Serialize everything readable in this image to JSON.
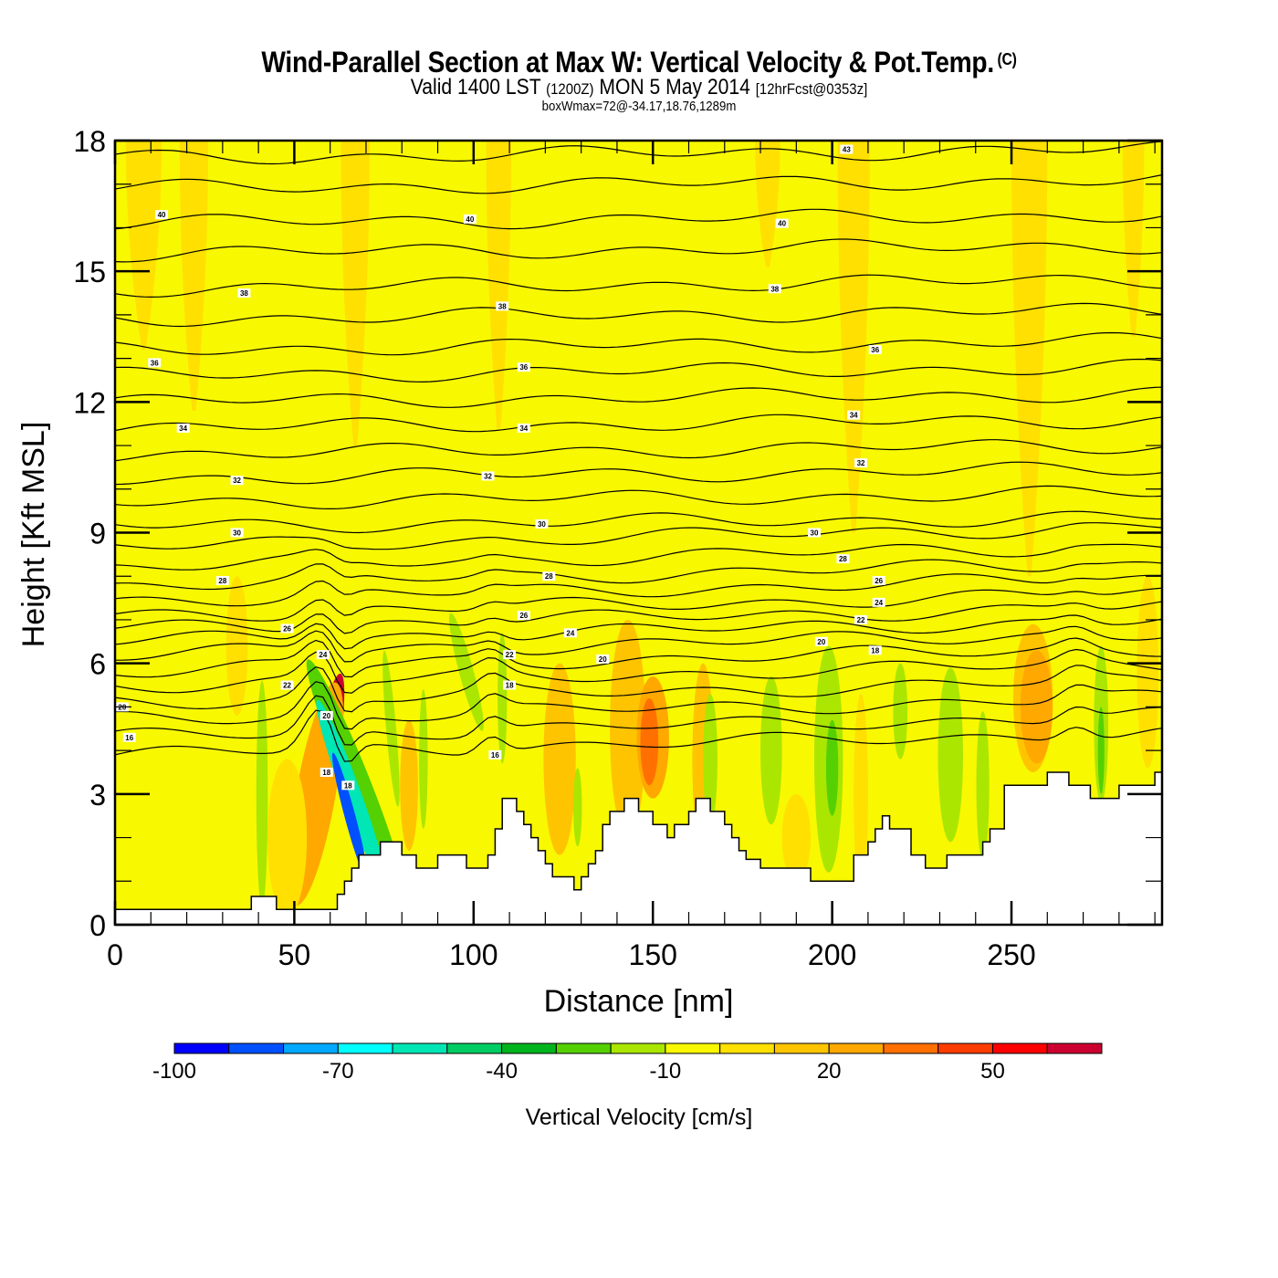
{
  "header": {
    "title": "Wind-Parallel Section at Max W: Vertical Velocity & Pot.Temp.",
    "copyright_mark": "(C)",
    "valid_prefix": "Valid 1400 LST",
    "valid_utc": "(1200Z)",
    "valid_date": "MON 5 May 2014",
    "forecast_info": "[12hrFcst@0353z]",
    "box_info": "boxWmax=72@-34.17,18.76,1289m"
  },
  "chart_data": {
    "type": "heatmap",
    "title": "Wind-Parallel Section at Max W: Vertical Velocity & Pot.Temp.",
    "xlabel": "Distance [nm]",
    "ylabel": "Height [Kft MSL]",
    "xlim": [
      0,
      292
    ],
    "ylim": [
      0,
      18
    ],
    "x_ticks": [
      0,
      50,
      100,
      150,
      200,
      250
    ],
    "x_tick_labels": [
      "0",
      "50",
      "100",
      "150",
      "200",
      "250"
    ],
    "x_minor_step": 10,
    "y_ticks": [
      0,
      3,
      6,
      9,
      12,
      15,
      18
    ],
    "y_tick_labels": [
      "0",
      "3",
      "6",
      "9",
      "12",
      "15",
      "18"
    ],
    "y_minor_step": 1,
    "colorbar": {
      "title": "Vertical Velocity [cm/s]",
      "placement": "bottom",
      "bounds": [
        -100,
        -90,
        -80,
        -70,
        -60,
        -50,
        -40,
        -30,
        -20,
        -10,
        0,
        10,
        20,
        30,
        40,
        50,
        60,
        70
      ],
      "colors": [
        "#0000ff",
        "#0050ff",
        "#00a8ff",
        "#00ffff",
        "#00e6b4",
        "#00cc64",
        "#00b41e",
        "#55d000",
        "#aae600",
        "#f8f800",
        "#ffe000",
        "#ffc400",
        "#ffa800",
        "#ff7000",
        "#ff3c00",
        "#ff0000",
        "#cc0030"
      ],
      "tick_values": [
        -100,
        -70,
        -40,
        -10,
        20,
        50
      ],
      "tick_labels": [
        "-100",
        "-70",
        "-40",
        "-10",
        "20",
        "50"
      ]
    },
    "background_value_cms": -5,
    "terrain_kft": {
      "x_nm": [
        0,
        38,
        38,
        45,
        45,
        60,
        60,
        62,
        62,
        64,
        64,
        66,
        66,
        68,
        68,
        74,
        74,
        80,
        80,
        84,
        84,
        90,
        90,
        98,
        98,
        104,
        104,
        106,
        106,
        108,
        108,
        112,
        112,
        114,
        114,
        116,
        116,
        118,
        118,
        120,
        120,
        122,
        122,
        124,
        124,
        128,
        128,
        130,
        130,
        132,
        132,
        134,
        134,
        136,
        136,
        138,
        138,
        142,
        142,
        146,
        146,
        150,
        150,
        154,
        154,
        156,
        156,
        160,
        160,
        162,
        162,
        166,
        166,
        170,
        170,
        172,
        172,
        174,
        174,
        176,
        176,
        180,
        180,
        186,
        186,
        194,
        194,
        200,
        200,
        206,
        206,
        210,
        210,
        212,
        212,
        214,
        214,
        216,
        216,
        222,
        222,
        224,
        224,
        226,
        226,
        232,
        232,
        238,
        238,
        242,
        242,
        244,
        244,
        248,
        248,
        252,
        252,
        254,
        254,
        256,
        256,
        260,
        260,
        266,
        266,
        272,
        272,
        274,
        274,
        280,
        280,
        290,
        290,
        292
      ],
      "y_kft": [
        0.35,
        0.35,
        0.65,
        0.65,
        0.35,
        0.35,
        0.35,
        0.35,
        0.7,
        0.7,
        1.0,
        1.0,
        1.3,
        1.3,
        1.6,
        1.6,
        1.9,
        1.9,
        1.6,
        1.6,
        1.3,
        1.3,
        1.6,
        1.6,
        1.3,
        1.3,
        1.6,
        1.6,
        2.2,
        2.2,
        2.9,
        2.9,
        2.6,
        2.6,
        2.3,
        2.3,
        2.0,
        2.0,
        1.7,
        1.7,
        1.4,
        1.4,
        1.1,
        1.1,
        1.1,
        1.1,
        0.8,
        0.8,
        1.1,
        1.1,
        1.4,
        1.4,
        1.7,
        1.7,
        2.3,
        2.3,
        2.6,
        2.6,
        2.9,
        2.9,
        2.6,
        2.6,
        2.3,
        2.3,
        2.0,
        2.0,
        2.3,
        2.3,
        2.6,
        2.6,
        2.9,
        2.9,
        2.6,
        2.6,
        2.3,
        2.3,
        2.0,
        2.0,
        1.7,
        1.7,
        1.5,
        1.5,
        1.3,
        1.3,
        1.3,
        1.3,
        1.0,
        1.0,
        1.0,
        1.0,
        1.6,
        1.6,
        1.9,
        1.9,
        2.2,
        2.2,
        2.5,
        2.5,
        2.2,
        2.2,
        1.6,
        1.6,
        1.6,
        1.6,
        1.3,
        1.3,
        1.6,
        1.6,
        1.6,
        1.6,
        1.9,
        1.9,
        2.2,
        2.2,
        3.2,
        3.2,
        3.2,
        3.2,
        3.2,
        3.2,
        3.2,
        3.2,
        3.5,
        3.5,
        3.2,
        3.2,
        2.9,
        2.9,
        2.9,
        2.9,
        3.2,
        3.2,
        3.5,
        3.5
      ]
    },
    "w_features": [
      {
        "value": 60,
        "x_nm": 58,
        "y_kft": 3.5,
        "half_width_nm": 3.5,
        "half_height_kft": 2.3,
        "tilt_deg": 10
      },
      {
        "value": 45,
        "x_nm": 58.5,
        "y_kft": 3.6,
        "half_width_nm": 2.5,
        "half_height_kft": 1.8,
        "tilt_deg": 10
      },
      {
        "value": 70,
        "x_nm": 58,
        "y_kft": 3.7,
        "half_width_nm": 1.5,
        "half_height_kft": 1.2,
        "tilt_deg": 10
      },
      {
        "value": 25,
        "x_nm": 56,
        "y_kft": 3.0,
        "half_width_nm": 5.5,
        "half_height_kft": 2.6,
        "tilt_deg": 10
      },
      {
        "value": -30,
        "x_nm": 67,
        "y_kft": 3.4,
        "half_width_nm": 3.5,
        "half_height_kft": 2.9,
        "tilt_deg": -22
      },
      {
        "value": -60,
        "x_nm": 66,
        "y_kft": 3.0,
        "half_width_nm": 2.6,
        "half_height_kft": 2.3,
        "tilt_deg": -20
      },
      {
        "value": -90,
        "x_nm": 65.5,
        "y_kft": 2.5,
        "half_width_nm": 1.5,
        "half_height_kft": 1.5,
        "tilt_deg": -15
      },
      {
        "value": -15,
        "x_nm": 41,
        "y_kft": 3.0,
        "half_width_nm": 1.6,
        "half_height_kft": 2.6,
        "tilt_deg": 0
      },
      {
        "value": 5,
        "x_nm": 34,
        "y_kft": 6.4,
        "half_width_nm": 3.0,
        "half_height_kft": 1.6,
        "tilt_deg": 0
      },
      {
        "value": 5,
        "x_nm": 48,
        "y_kft": 2.0,
        "half_width_nm": 5.5,
        "half_height_kft": 1.8,
        "tilt_deg": 0
      },
      {
        "value": -15,
        "x_nm": 77,
        "y_kft": 4.5,
        "half_width_nm": 1.4,
        "half_height_kft": 1.8,
        "tilt_deg": -5
      },
      {
        "value": 15,
        "x_nm": 82,
        "y_kft": 3.2,
        "half_width_nm": 2.5,
        "half_height_kft": 1.5,
        "tilt_deg": 0
      },
      {
        "value": -15,
        "x_nm": 86,
        "y_kft": 3.8,
        "half_width_nm": 1.2,
        "half_height_kft": 1.6,
        "tilt_deg": 0
      },
      {
        "value": -15,
        "x_nm": 98,
        "y_kft": 5.8,
        "half_width_nm": 2.0,
        "half_height_kft": 1.4,
        "tilt_deg": -15
      },
      {
        "value": -15,
        "x_nm": 108,
        "y_kft": 5.2,
        "half_width_nm": 1.3,
        "half_height_kft": 1.5,
        "tilt_deg": 0
      },
      {
        "value": 15,
        "x_nm": 124,
        "y_kft": 3.8,
        "half_width_nm": 4.5,
        "half_height_kft": 2.2,
        "tilt_deg": 0
      },
      {
        "value": -15,
        "x_nm": 129,
        "y_kft": 2.7,
        "half_width_nm": 1.2,
        "half_height_kft": 0.9,
        "tilt_deg": 0
      },
      {
        "value": 15,
        "x_nm": 143,
        "y_kft": 4.5,
        "half_width_nm": 5.0,
        "half_height_kft": 2.5,
        "tilt_deg": 0
      },
      {
        "value": 25,
        "x_nm": 150,
        "y_kft": 4.3,
        "half_width_nm": 4.5,
        "half_height_kft": 1.4,
        "tilt_deg": 0
      },
      {
        "value": 35,
        "x_nm": 149,
        "y_kft": 4.2,
        "half_width_nm": 2.5,
        "half_height_kft": 1.0,
        "tilt_deg": 0
      },
      {
        "value": 15,
        "x_nm": 164,
        "y_kft": 3.8,
        "half_width_nm": 3.0,
        "half_height_kft": 2.2,
        "tilt_deg": 0
      },
      {
        "value": -15,
        "x_nm": 166,
        "y_kft": 3.8,
        "half_width_nm": 2.0,
        "half_height_kft": 1.5,
        "tilt_deg": 0
      },
      {
        "value": -15,
        "x_nm": 183,
        "y_kft": 4.0,
        "half_width_nm": 3.0,
        "half_height_kft": 1.7,
        "tilt_deg": 0
      },
      {
        "value": 5,
        "x_nm": 190,
        "y_kft": 2.0,
        "half_width_nm": 4.0,
        "half_height_kft": 1.0,
        "tilt_deg": 0
      },
      {
        "value": -15,
        "x_nm": 199,
        "y_kft": 3.8,
        "half_width_nm": 4.0,
        "half_height_kft": 2.6,
        "tilt_deg": 0
      },
      {
        "value": -30,
        "x_nm": 200,
        "y_kft": 3.6,
        "half_width_nm": 1.7,
        "half_height_kft": 1.1,
        "tilt_deg": 0
      },
      {
        "value": 5,
        "x_nm": 208,
        "y_kft": 3.0,
        "half_width_nm": 2.0,
        "half_height_kft": 2.3,
        "tilt_deg": 0
      },
      {
        "value": -15,
        "x_nm": 219,
        "y_kft": 4.9,
        "half_width_nm": 2.0,
        "half_height_kft": 1.1,
        "tilt_deg": 0
      },
      {
        "value": -15,
        "x_nm": 233,
        "y_kft": 3.9,
        "half_width_nm": 3.5,
        "half_height_kft": 2.0,
        "tilt_deg": 0
      },
      {
        "value": -15,
        "x_nm": 242,
        "y_kft": 3.2,
        "half_width_nm": 1.8,
        "half_height_kft": 1.7,
        "tilt_deg": 0
      },
      {
        "value": 15,
        "x_nm": 256,
        "y_kft": 5.2,
        "half_width_nm": 5.5,
        "half_height_kft": 1.7,
        "tilt_deg": 0
      },
      {
        "value": 25,
        "x_nm": 257,
        "y_kft": 5.0,
        "half_width_nm": 4.5,
        "half_height_kft": 1.3,
        "tilt_deg": 0
      },
      {
        "value": -15,
        "x_nm": 275,
        "y_kft": 4.6,
        "half_width_nm": 2.0,
        "half_height_kft": 1.8,
        "tilt_deg": 0
      },
      {
        "value": -30,
        "x_nm": 275,
        "y_kft": 4.0,
        "half_width_nm": 0.9,
        "half_height_kft": 1.0,
        "tilt_deg": 0
      },
      {
        "value": 5,
        "x_nm": 288,
        "y_kft": 5.8,
        "half_width_nm": 3.0,
        "half_height_kft": 2.2,
        "tilt_deg": 0
      }
    ],
    "upper_plumes": [
      {
        "value": 5,
        "x_nm": 8,
        "top_kft": 18,
        "bottom_kft": 13.2,
        "half_width_nm": 5
      },
      {
        "value": 5,
        "x_nm": 22,
        "top_kft": 18,
        "bottom_kft": 11.8,
        "half_width_nm": 4
      },
      {
        "value": 5,
        "x_nm": 67,
        "top_kft": 18,
        "bottom_kft": 11.0,
        "half_width_nm": 4
      },
      {
        "value": 5,
        "x_nm": 107,
        "top_kft": 18,
        "bottom_kft": 11.4,
        "half_width_nm": 3.5
      },
      {
        "value": 5,
        "x_nm": 182,
        "top_kft": 18,
        "bottom_kft": 15.1,
        "half_width_nm": 3.5
      },
      {
        "value": 5,
        "x_nm": 206,
        "top_kft": 18,
        "bottom_kft": 9.0,
        "half_width_nm": 4.5
      },
      {
        "value": 5,
        "x_nm": 255,
        "top_kft": 18,
        "bottom_kft": 8.0,
        "half_width_nm": 5
      },
      {
        "value": 5,
        "x_nm": 284,
        "top_kft": 18,
        "bottom_kft": 13.5,
        "half_width_nm": 3
      }
    ],
    "theta_contours": {
      "units": "deg C potential temperature",
      "levels": [
        16,
        17,
        18,
        19,
        20,
        21,
        22,
        23,
        24,
        25,
        26,
        27,
        28,
        29,
        30,
        31,
        32,
        33,
        34,
        35,
        36,
        37,
        38,
        39,
        40,
        41,
        42,
        43
      ],
      "base_heights_kft": [
        3.9,
        4.3,
        4.7,
        5.1,
        5.5,
        5.85,
        6.2,
        6.5,
        6.8,
        7.1,
        7.45,
        7.8,
        8.2,
        8.65,
        9.15,
        9.7,
        10.25,
        10.8,
        11.4,
        12.0,
        12.6,
        13.2,
        13.9,
        14.6,
        15.4,
        16.1,
        16.9,
        17.6
      ],
      "labels": [
        {
          "text": "16",
          "x_nm": 4,
          "y_kft": 4.3
        },
        {
          "text": "20",
          "x_nm": 2,
          "y_kft": 5.0
        },
        {
          "text": "16",
          "x_nm": 106,
          "y_kft": 3.9
        },
        {
          "text": "18",
          "x_nm": 110,
          "y_kft": 5.5
        },
        {
          "text": "18",
          "x_nm": 59,
          "y_kft": 3.5
        },
        {
          "text": "18",
          "x_nm": 65,
          "y_kft": 3.2
        },
        {
          "text": "20",
          "x_nm": 59,
          "y_kft": 4.8
        },
        {
          "text": "22",
          "x_nm": 48,
          "y_kft": 5.5
        },
        {
          "text": "24",
          "x_nm": 58,
          "y_kft": 6.2
        },
        {
          "text": "26",
          "x_nm": 48,
          "y_kft": 6.8
        },
        {
          "text": "28",
          "x_nm": 30,
          "y_kft": 7.9
        },
        {
          "text": "30",
          "x_nm": 34,
          "y_kft": 9.0
        },
        {
          "text": "32",
          "x_nm": 34,
          "y_kft": 10.2
        },
        {
          "text": "34",
          "x_nm": 19,
          "y_kft": 11.4
        },
        {
          "text": "36",
          "x_nm": 11,
          "y_kft": 12.9
        },
        {
          "text": "38",
          "x_nm": 36,
          "y_kft": 14.5
        },
        {
          "text": "40",
          "x_nm": 13,
          "y_kft": 16.3
        },
        {
          "text": "40",
          "x_nm": 99,
          "y_kft": 16.2
        },
        {
          "text": "38",
          "x_nm": 108,
          "y_kft": 14.2
        },
        {
          "text": "36",
          "x_nm": 114,
          "y_kft": 12.8
        },
        {
          "text": "34",
          "x_nm": 114,
          "y_kft": 11.4
        },
        {
          "text": "32",
          "x_nm": 104,
          "y_kft": 10.3
        },
        {
          "text": "30",
          "x_nm": 119,
          "y_kft": 9.2
        },
        {
          "text": "28",
          "x_nm": 121,
          "y_kft": 8.0
        },
        {
          "text": "26",
          "x_nm": 114,
          "y_kft": 7.1
        },
        {
          "text": "24",
          "x_nm": 127,
          "y_kft": 6.7
        },
        {
          "text": "22",
          "x_nm": 110,
          "y_kft": 6.2
        },
        {
          "text": "20",
          "x_nm": 136,
          "y_kft": 6.1
        },
        {
          "text": "43",
          "x_nm": 204,
          "y_kft": 17.8
        },
        {
          "text": "40",
          "x_nm": 186,
          "y_kft": 16.1
        },
        {
          "text": "38",
          "x_nm": 184,
          "y_kft": 14.6
        },
        {
          "text": "36",
          "x_nm": 212,
          "y_kft": 13.2
        },
        {
          "text": "34",
          "x_nm": 206,
          "y_kft": 11.7
        },
        {
          "text": "32",
          "x_nm": 208,
          "y_kft": 10.6
        },
        {
          "text": "30",
          "x_nm": 195,
          "y_kft": 9.0
        },
        {
          "text": "28",
          "x_nm": 203,
          "y_kft": 8.4
        },
        {
          "text": "26",
          "x_nm": 213,
          "y_kft": 7.9
        },
        {
          "text": "24",
          "x_nm": 213,
          "y_kft": 7.4
        },
        {
          "text": "22",
          "x_nm": 208,
          "y_kft": 7.0
        },
        {
          "text": "20",
          "x_nm": 197,
          "y_kft": 6.5
        },
        {
          "text": "18",
          "x_nm": 212,
          "y_kft": 6.3
        }
      ]
    }
  }
}
